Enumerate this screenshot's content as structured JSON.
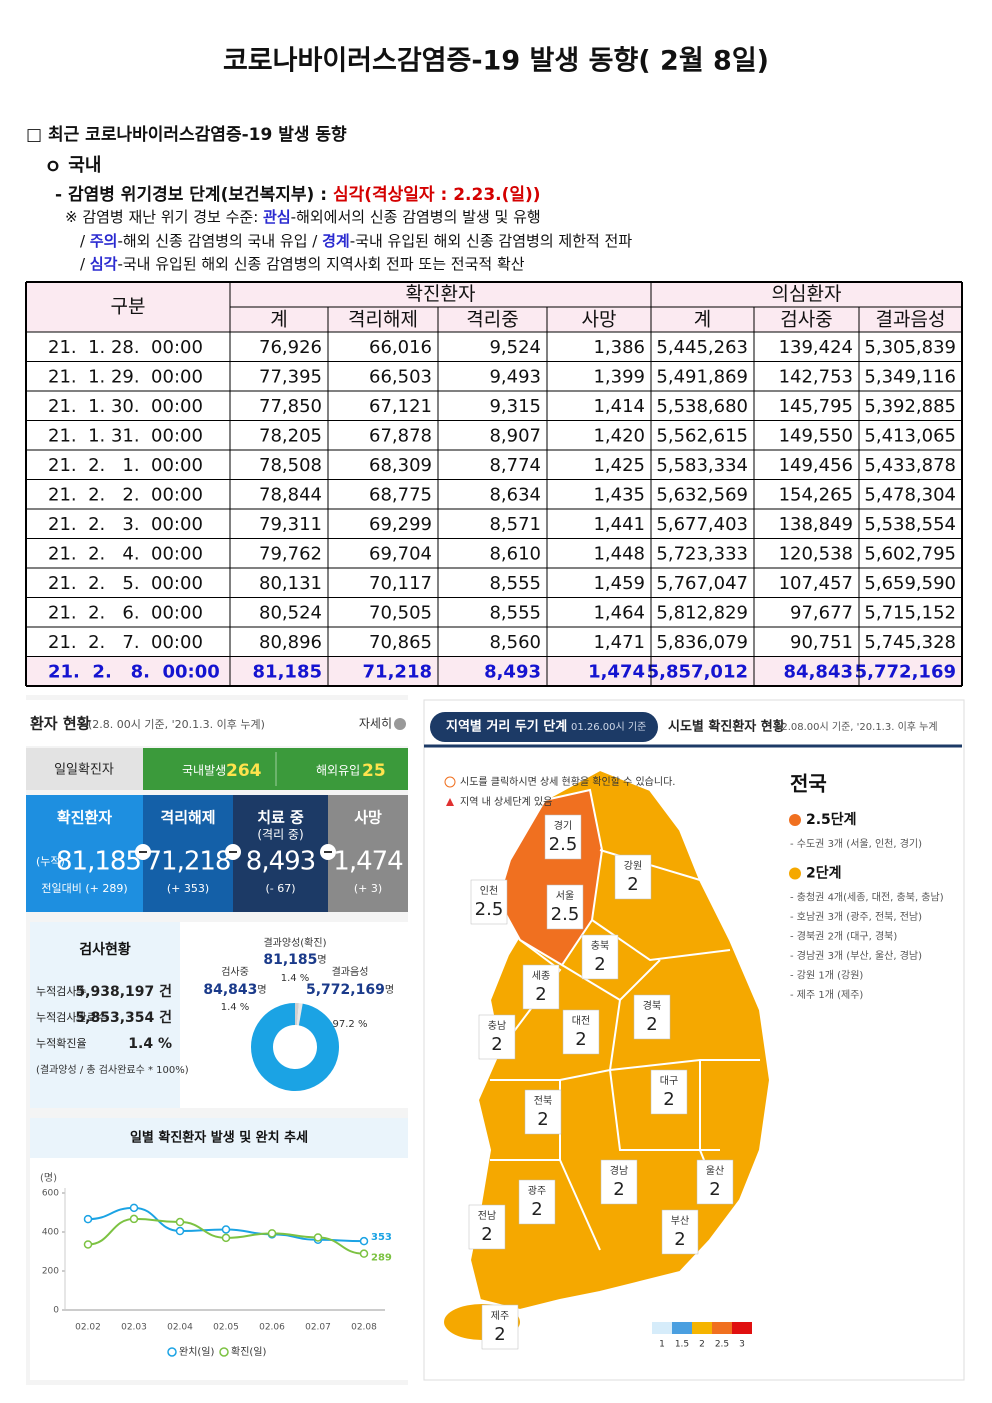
{
  "title": "코로나바이러스감염증-19 발생 동향( 2월 8일)",
  "section": {
    "heading": "□ 최근 코로나바이러스감염증-19 발생 동향",
    "sub": "ｏ 국내",
    "alert": {
      "label": "- 감염병 위기경보 단계(보건복지부) : ",
      "value": "심각(격상일자 : 2.23.(일))"
    },
    "notes": [
      [
        "※ 감염병 재난 위기 경보 수준: ",
        "관심",
        "-해외에서의 신종 감염병의 발생 및 유행"
      ],
      [
        "/ ",
        "주의",
        "-해외 신종 감염병의 국내 유입 / ",
        "경계",
        "-국내 유입된 해외 신종 감염병의 제한적 전파"
      ],
      [
        "/ ",
        "심각",
        "-국내 유입된 해외 신종 감염병의 지역사회 전파 또는 전국적 확산"
      ]
    ]
  },
  "table": {
    "corner": "구분",
    "groups": [
      "확진환자",
      "의심환자"
    ],
    "columns": [
      "계",
      "격리해제",
      "격리중",
      "사망",
      "계",
      "검사중",
      "결과음성"
    ],
    "rows": [
      [
        "21.  1. 28.  00:00",
        "76,926",
        "66,016",
        "9,524",
        "1,386",
        "5,445,263",
        "139,424",
        "5,305,839"
      ],
      [
        "21.  1. 29.  00:00",
        "77,395",
        "66,503",
        "9,493",
        "1,399",
        "5,491,869",
        "142,753",
        "5,349,116"
      ],
      [
        "21.  1. 30.  00:00",
        "77,850",
        "67,121",
        "9,315",
        "1,414",
        "5,538,680",
        "145,795",
        "5,392,885"
      ],
      [
        "21.  1. 31.  00:00",
        "78,205",
        "67,878",
        "8,907",
        "1,420",
        "5,562,615",
        "149,550",
        "5,413,065"
      ],
      [
        "21.  2.   1.  00:00",
        "78,508",
        "68,309",
        "8,774",
        "1,425",
        "5,583,334",
        "149,456",
        "5,433,878"
      ],
      [
        "21.  2.   2.  00:00",
        "78,844",
        "68,775",
        "8,634",
        "1,435",
        "5,632,569",
        "154,265",
        "5,478,304"
      ],
      [
        "21.  2.   3.  00:00",
        "79,311",
        "69,299",
        "8,571",
        "1,441",
        "5,677,403",
        "138,849",
        "5,538,554"
      ],
      [
        "21.  2.   4.  00:00",
        "79,762",
        "69,704",
        "8,610",
        "1,448",
        "5,723,333",
        "120,538",
        "5,602,795"
      ],
      [
        "21.  2.   5.  00:00",
        "80,131",
        "70,117",
        "8,555",
        "1,459",
        "5,767,047",
        "107,457",
        "5,659,590"
      ],
      [
        "21.  2.   6.  00:00",
        "80,524",
        "70,505",
        "8,555",
        "1,464",
        "5,812,829",
        "97,677",
        "5,715,152"
      ],
      [
        "21.  2.   7.  00:00",
        "80,896",
        "70,865",
        "8,560",
        "1,471",
        "5,836,079",
        "90,751",
        "5,745,328"
      ],
      [
        "21.  2.   8.  00:00",
        "81,185",
        "71,218",
        "8,493",
        "1,474",
        "5,857,012",
        "84,843",
        "5,772,169"
      ]
    ]
  },
  "dashboard": {
    "title": "환자 현황",
    "basis": "(2.8. 00시 기준, '20.1.3. 이후 누계)",
    "more": "자세히",
    "daily": {
      "label": "일일확진자",
      "domestic": {
        "label": "국내발생",
        "value": "264"
      },
      "overseas": {
        "label": "해외유입",
        "value": "25"
      }
    },
    "cards": [
      {
        "label": "확진환자",
        "prefix": "(누적)",
        "value": "81,185",
        "change": "전일대비 (+ 289)"
      },
      {
        "label": "격리해제",
        "value": "71,218",
        "change": "(+ 353)"
      },
      {
        "label": "치료 중",
        "sub": "(격리 중)",
        "value": "8,493",
        "change": "(- 67)"
      },
      {
        "label": "사망",
        "value": "1,474",
        "change": "(+ 3)"
      }
    ],
    "tests": {
      "title": "검사현황",
      "rows": [
        [
          "누적검사수",
          "5,938,197 건"
        ],
        [
          "누적검사완료수",
          "5,853,354 건"
        ],
        [
          "누적확진율",
          "1.4 %"
        ]
      ],
      "note": "(결과양성 / 총 검사완료수 * 100%)"
    },
    "test_chart": {
      "type": "donut",
      "categories": [
        "결과양성(확진)",
        "검사중",
        "결과음성"
      ],
      "counts": [
        "81,185",
        "84,843",
        "5,772,169"
      ],
      "unit": "명",
      "values": [
        1.4,
        1.4,
        97.2
      ],
      "value_labels": [
        "1.4 %",
        "1.4 %",
        "97.2 %"
      ],
      "colors": [
        "#cfcfcf",
        "#e6e6e6",
        "#1ba3e4"
      ]
    }
  },
  "chart_data": {
    "type": "line",
    "title": "일별 확진환자 발생 및 완치 추세",
    "y_label": "(명)",
    "categories": [
      "02.02",
      "02.03",
      "02.04",
      "02.05",
      "02.06",
      "02.07",
      "02.08"
    ],
    "series": [
      {
        "name": "완치(일)",
        "color": "#1ba3e4",
        "values": [
          466,
          524,
          405,
          413,
          388,
          360,
          353
        ]
      },
      {
        "name": "확진(일)",
        "color": "#7cc242",
        "values": [
          336,
          467,
          451,
          370,
          393,
          372,
          289
        ]
      }
    ],
    "ylim": [
      0,
      600
    ],
    "yticks": [
      0,
      200,
      400,
      600
    ]
  },
  "map": {
    "tabs": [
      {
        "title": "지역별 거리 두기 단계",
        "basis": "01.26.00시 기준"
      },
      {
        "title": "시도별 확진환자 현황",
        "basis": "02.08.00시 기준, '20.1.3. 이후 누계"
      }
    ],
    "notes": [
      "시도를 클릭하시면 상세 현황을 확인할 수 있습니다.",
      "지역 내 상세단계 있음"
    ],
    "regions": [
      {
        "name": "경기",
        "level": "2.5"
      },
      {
        "name": "서울",
        "level": "2.5"
      },
      {
        "name": "인천",
        "level": "2.5"
      },
      {
        "name": "강원",
        "level": "2"
      },
      {
        "name": "충북",
        "level": "2"
      },
      {
        "name": "세종",
        "level": "2"
      },
      {
        "name": "충남",
        "level": "2"
      },
      {
        "name": "대전",
        "level": "2"
      },
      {
        "name": "경북",
        "level": "2"
      },
      {
        "name": "대구",
        "level": "2"
      },
      {
        "name": "전북",
        "level": "2"
      },
      {
        "name": "광주",
        "level": "2"
      },
      {
        "name": "전남",
        "level": "2"
      },
      {
        "name": "경남",
        "level": "2"
      },
      {
        "name": "울산",
        "level": "2"
      },
      {
        "name": "부산",
        "level": "2"
      },
      {
        "name": "제주",
        "level": "2"
      }
    ],
    "summary": {
      "title": "전국",
      "groups": [
        {
          "label": "2.5단계",
          "items": [
            "- 수도권 3개 (서울, 인천, 경기)"
          ]
        },
        {
          "label": "2단계",
          "items": [
            "- 충청권 4개(세종, 대전, 충북, 충남)",
            "- 호남권 3개 (광주, 전북, 전남)",
            "- 경북권 2개 (대구, 경북)",
            "- 경남권 3개 (부산, 울산, 경남)",
            "- 강원 1개 (강원)",
            "- 제주 1개 (제주)"
          ]
        }
      ]
    },
    "legend": [
      "1",
      "1.5",
      "2",
      "2.5",
      "3"
    ]
  }
}
